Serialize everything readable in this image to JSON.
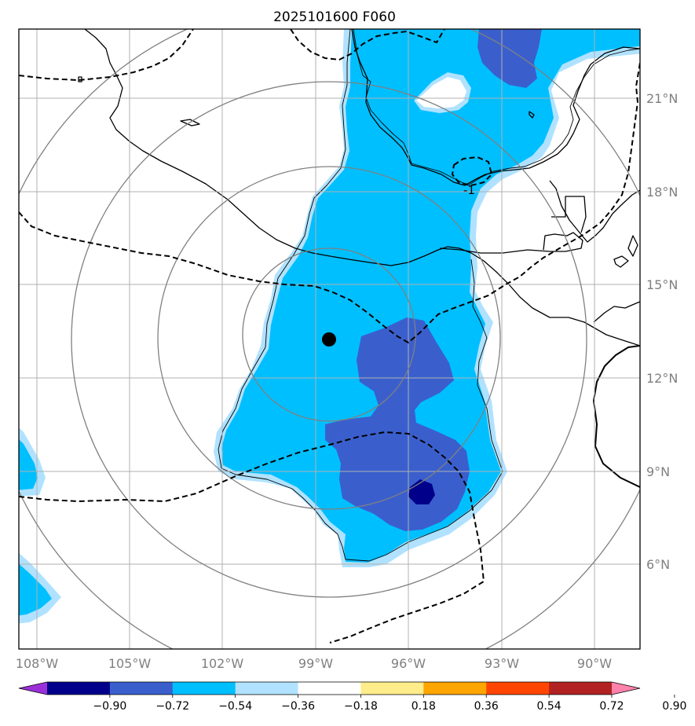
{
  "chart_data": {
    "type": "contour-map",
    "title": "2025101600 F060",
    "lon_range": [
      -108.5,
      -88.5
    ],
    "lat_range": [
      3.5,
      23.5
    ],
    "x_ticks": [
      {
        "value": -108,
        "label": "108°W"
      },
      {
        "value": -105,
        "label": "105°W"
      },
      {
        "value": -102,
        "label": "102°W"
      },
      {
        "value": -99,
        "label": "99°W"
      },
      {
        "value": -96,
        "label": "96°W"
      },
      {
        "value": -93,
        "label": "93°W"
      },
      {
        "value": -90,
        "label": "90°W"
      }
    ],
    "y_ticks": [
      {
        "value": 6,
        "label": "6°N"
      },
      {
        "value": 9,
        "label": "9°N"
      },
      {
        "value": 12,
        "label": "12°N"
      },
      {
        "value": 15,
        "label": "15°N"
      },
      {
        "value": 18,
        "label": "18°N"
      },
      {
        "value": 21,
        "label": "21°N"
      }
    ],
    "grid": true,
    "center_marker": {
      "lon": -98.6,
      "lat": 13.3
    },
    "range_rings_degrees": [
      2.7,
      5.4,
      8.1,
      10.8
    ],
    "dashed_contour_label": "-1",
    "colorbar": {
      "orientation": "horizontal",
      "extend": "both",
      "levels": [
        -0.9,
        -0.72,
        -0.54,
        -0.36,
        -0.18,
        0.18,
        0.36,
        0.54,
        0.72,
        0.9
      ],
      "tick_labels": [
        "−0.90",
        "−0.72",
        "−0.54",
        "−0.36",
        "−0.18",
        "0.18",
        "0.36",
        "0.54",
        "0.72",
        "0.90"
      ],
      "colors": [
        "#9b30d9",
        "#00008b",
        "#3a5fcd",
        "#00bfff",
        "#b0e2ff",
        "#ffffff",
        "#ffec8b",
        "#ffa500",
        "#ff4500",
        "#b22222",
        "#ff82ab"
      ]
    }
  }
}
